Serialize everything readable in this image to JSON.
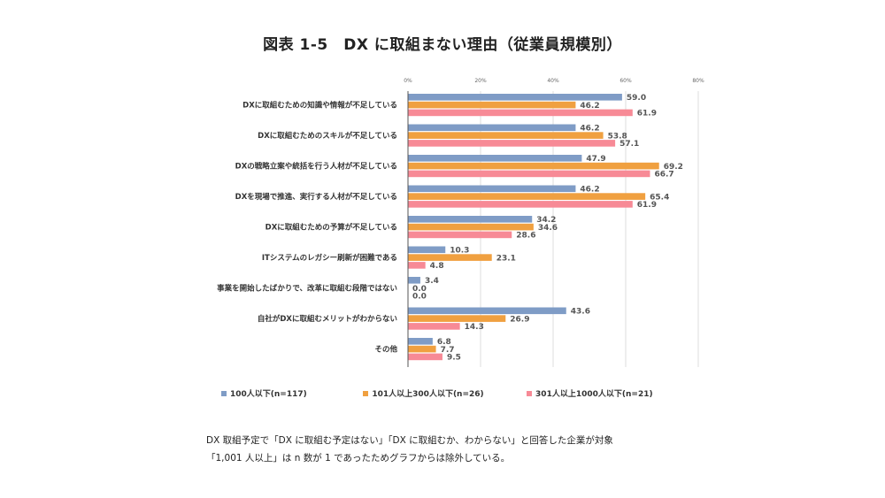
{
  "chart_data": {
    "type": "bar",
    "orientation": "horizontal",
    "title": "図表 1-5　DX に取組まない理由（従業員規模別）",
    "xlabel": "",
    "ylabel": "",
    "xlim": [
      0,
      80
    ],
    "x_ticks": [
      "0%",
      "20%",
      "40%",
      "60%",
      "80%"
    ],
    "x_tick_values": [
      0,
      20,
      40,
      60,
      80
    ],
    "grid": true,
    "legend_position": "bottom",
    "categories": [
      "DXに取組むための知識や情報が不足している",
      "DXに取組むためのスキルが不足している",
      "DXの戦略立案や統括を行う人材が不足している",
      "DXを現場で推進、実行する人材が不足している",
      "DXに取組むための予算が不足している",
      "ITシステムのレガシー刷新が困難である",
      "事業を開始したばかりで、改革に取組む段階ではない",
      "自社がDXに取組むメリットがわからない",
      "その他"
    ],
    "series": [
      {
        "name": "100人以下(n=117)",
        "color": "#7f9cc6",
        "values": [
          59.0,
          46.2,
          47.9,
          46.2,
          34.2,
          10.3,
          3.4,
          43.6,
          6.8
        ]
      },
      {
        "name": "101人以上300人以下(n=26)",
        "color": "#f0a040",
        "values": [
          46.2,
          53.8,
          69.2,
          65.4,
          34.6,
          23.1,
          0.0,
          26.9,
          7.7
        ]
      },
      {
        "name": "301人以上1000人以下(n=21)",
        "color": "#f78a96",
        "values": [
          61.9,
          57.1,
          66.7,
          61.9,
          28.6,
          4.8,
          0.0,
          14.3,
          9.5
        ]
      }
    ]
  },
  "notes": [
    "DX 取組予定で「DX に取組む予定はない」「DX に取組むか、わからない」と回答した企業が対象",
    "「1,001 人以上」は n 数が 1 であったためグラフからは除外している。"
  ]
}
